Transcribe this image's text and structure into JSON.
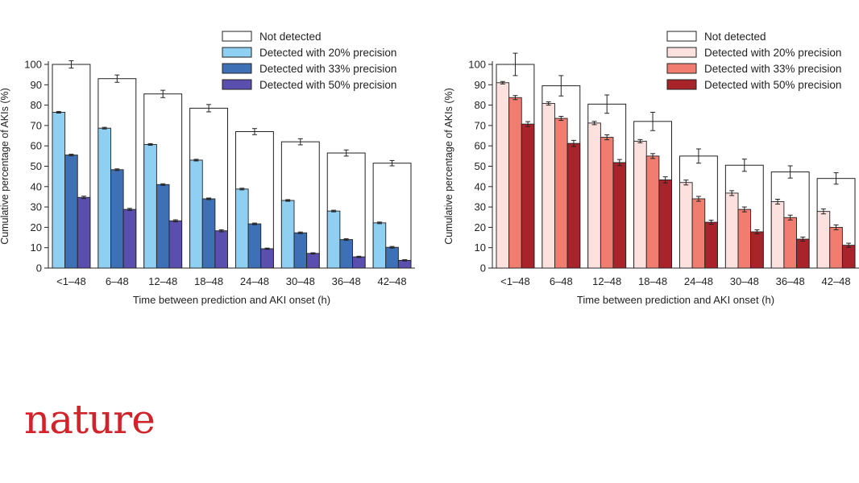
{
  "brand": {
    "logo_text": "nature",
    "logo_color": "#d2232a"
  },
  "chart_data": [
    {
      "type": "bar",
      "xlabel": "Time between prediction and AKI onset (h)",
      "ylabel": "Cumulative percentage of AKIs (%)",
      "ylim": [
        0,
        100
      ],
      "yticks": [
        0,
        10,
        20,
        30,
        40,
        50,
        60,
        70,
        80,
        90,
        100
      ],
      "grid": false,
      "legend_position": "top-right",
      "categories": [
        "<1–48",
        "6–48",
        "12–48",
        "18–48",
        "24–48",
        "30–48",
        "36–48",
        "42–48"
      ],
      "outline": {
        "name": "Not detected",
        "values": [
          100,
          93,
          85.5,
          78.5,
          67,
          62,
          56.5,
          51.5
        ],
        "errors": [
          1.8,
          1.8,
          1.8,
          1.8,
          1.5,
          1.5,
          1.5,
          1.3
        ]
      },
      "series": [
        {
          "name": "Detected with 20% precision",
          "color": "#8fd0f2",
          "values": [
            76.5,
            68.7,
            60.7,
            53,
            38.8,
            33.2,
            28,
            22.2
          ],
          "errors": [
            0.4,
            0.4,
            0.4,
            0.4,
            0.4,
            0.4,
            0.4,
            0.4
          ]
        },
        {
          "name": "Detected with 33% precision",
          "color": "#3e70b5",
          "values": [
            55.5,
            48.3,
            41,
            34,
            21.7,
            17.3,
            14,
            10.2
          ],
          "errors": [
            0.4,
            0.4,
            0.4,
            0.4,
            0.4,
            0.4,
            0.4,
            0.4
          ]
        },
        {
          "name": "Detected with 50% precision",
          "color": "#5a4eae",
          "values": [
            34.7,
            28.8,
            23.2,
            18.3,
            9.5,
            7.2,
            5.5,
            3.8
          ],
          "errors": [
            0.6,
            0.5,
            0.5,
            0.5,
            0.3,
            0.3,
            0.3,
            0.3
          ]
        }
      ]
    },
    {
      "type": "bar",
      "xlabel": "Time between prediction and AKI onset (h)",
      "ylabel": "Cumulative percentage of AKIs (%)",
      "ylim": [
        0,
        100
      ],
      "yticks": [
        0,
        10,
        20,
        30,
        40,
        50,
        60,
        70,
        80,
        90,
        100
      ],
      "grid": false,
      "legend_position": "top-right",
      "categories": [
        "<1–48",
        "6–48",
        "12–48",
        "18–48",
        "24–48",
        "30–48",
        "36–48",
        "42–48"
      ],
      "outline": {
        "name": "Not detected",
        "values": [
          100,
          89.5,
          80.5,
          72,
          55,
          50.5,
          47.2,
          44
        ],
        "errors": [
          5.5,
          5,
          4.5,
          4.5,
          3.5,
          3,
          3,
          2.8
        ]
      },
      "series": [
        {
          "name": "Detected with 20% precision",
          "color": "#fde1de",
          "values": [
            91,
            80.8,
            71.2,
            62.3,
            42,
            36.8,
            32.6,
            27.8
          ],
          "errors": [
            0.6,
            0.8,
            0.8,
            0.8,
            1.2,
            1.2,
            1.2,
            1.2
          ]
        },
        {
          "name": "Detected with 33% precision",
          "color": "#f07d70",
          "values": [
            83.7,
            73.5,
            64.2,
            55,
            34,
            28.8,
            24.8,
            20
          ],
          "errors": [
            1,
            1,
            1.2,
            1.2,
            1.2,
            1.2,
            1.2,
            1.2
          ]
        },
        {
          "name": "Detected with 50% precision",
          "color": "#a8242a",
          "values": [
            70.7,
            61.2,
            51.8,
            43.3,
            22.5,
            17.8,
            14.2,
            11.2
          ],
          "errors": [
            1.2,
            1.5,
            1.5,
            1.5,
            1,
            1,
            1,
            1
          ]
        }
      ]
    }
  ]
}
